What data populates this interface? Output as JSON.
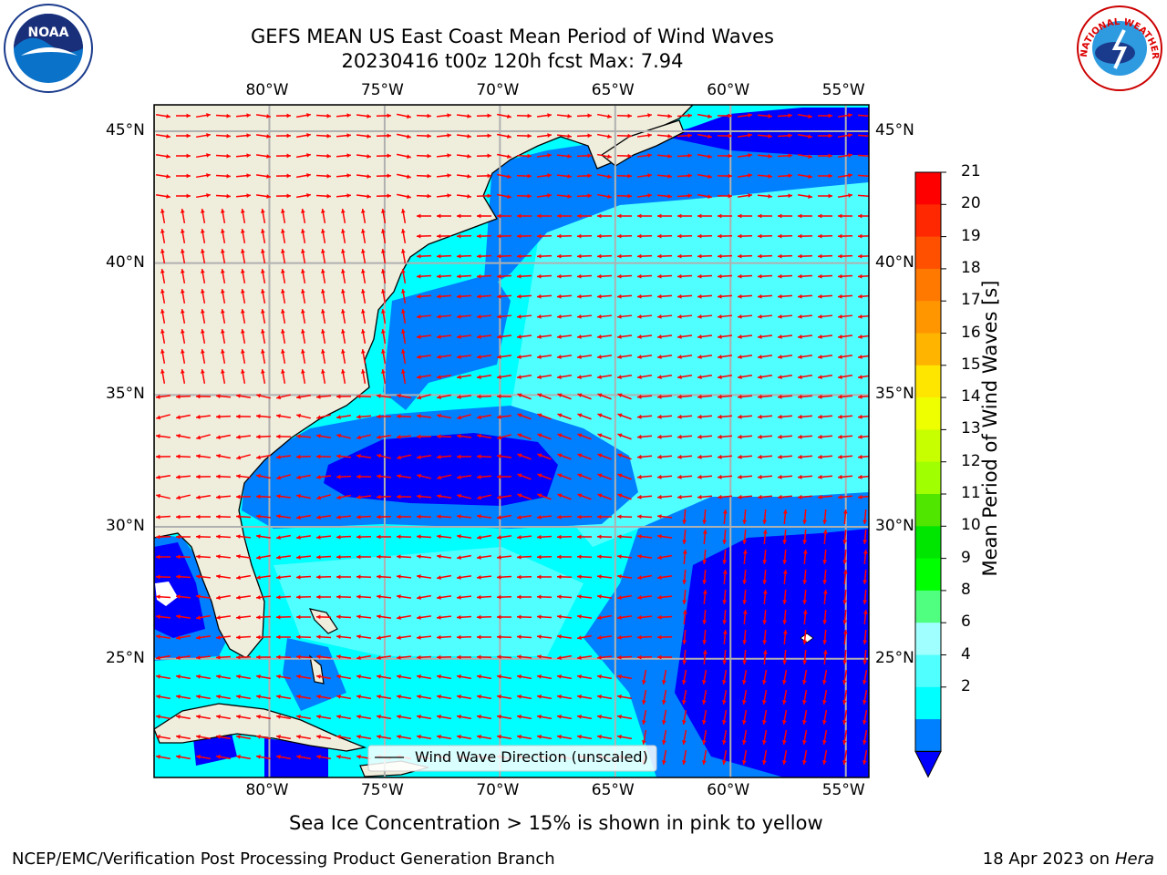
{
  "header": {
    "title": "GEFS MEAN US East Coast Mean Period of Wind Waves",
    "subtitle": "20230416 t00z 120h fcst   Max: 7.94"
  },
  "map": {
    "projection": "lat-lon",
    "lon_range": [
      -85,
      -54
    ],
    "lat_range": [
      20.5,
      46
    ],
    "lon_ticks": [
      "80°W",
      "75°W",
      "70°W",
      "65°W",
      "60°W",
      "55°W"
    ],
    "lat_ticks": [
      "45°N",
      "40°N",
      "35°N",
      "30°N",
      "25°N"
    ],
    "land_color": "#efeddc",
    "grid_color": "#b0b0b0",
    "arrow_color": "#ff0000"
  },
  "legend": {
    "label": "Wind Wave Direction (unscaled)"
  },
  "colorbar": {
    "title": "Mean Period of Wind Waves [s]",
    "labels": [
      "21",
      "20",
      "19",
      "18",
      "17",
      "16",
      "15",
      "14",
      "13",
      "12",
      "11",
      "10",
      "9",
      "8",
      "6",
      "4",
      "2"
    ],
    "colors": [
      "#ff0000",
      "#ff2800",
      "#ff5000",
      "#ff7800",
      "#ff9600",
      "#ffb400",
      "#ffe600",
      "#f0ff00",
      "#c8ff00",
      "#a0ff00",
      "#50e600",
      "#00e600",
      "#00ff00",
      "#50ff80",
      "#a0ffff",
      "#50ffff",
      "#00ffff",
      "#0080ff"
    ],
    "extend_color": "#0000ff"
  },
  "notes": {
    "sea_ice": "Sea Ice Concentration > 15% is shown in pink to yellow"
  },
  "footer": {
    "left": "NCEP/EMC/Verification Post Processing Product Generation Branch",
    "right_prefix": "18 Apr 2023 on ",
    "right_machine": "Hera"
  },
  "logos": {
    "noaa_text": "NOAA",
    "nws_text": "NATIONAL WEATHER SERVICE"
  }
}
